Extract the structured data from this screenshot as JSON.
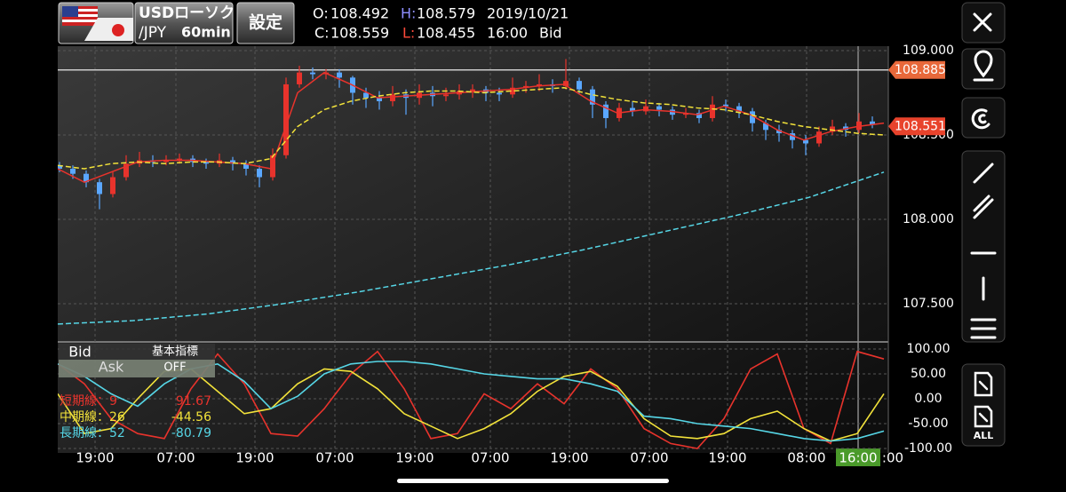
{
  "header": {
    "pair": "USDローソク",
    "pair_quote": "/JPY",
    "interval": "60min",
    "settings": "設定",
    "quote": {
      "open_label": "O:",
      "open": "108.492",
      "high_label": "H:",
      "high": "108.579",
      "date": "2019/10/21",
      "close_label": "C:",
      "close": "108.559",
      "low_label": "L:",
      "low": "108.455",
      "time": "16:00",
      "side": "Bid"
    }
  },
  "price_chart": {
    "ylim": [
      107.274,
      109.026
    ],
    "yticks": [
      {
        "value": 109,
        "label": "109.000"
      },
      {
        "value": 108.5,
        "label": "108.500"
      },
      {
        "value": 108,
        "label": "108.000"
      },
      {
        "value": 107.5,
        "label": "107.500"
      }
    ],
    "high_tag": {
      "value": 108.885,
      "label": "108.885"
    },
    "last_tag": {
      "value": 108.551,
      "label": "108.551"
    },
    "up_color": "#e8332c",
    "down_color": "#5aa7ff",
    "candles": [
      [
        108.32,
        108.34,
        108.28,
        108.3
      ],
      [
        108.3,
        108.32,
        108.24,
        108.27
      ],
      [
        108.27,
        108.29,
        108.19,
        108.22
      ],
      [
        108.22,
        108.24,
        108.06,
        108.15
      ],
      [
        108.15,
        108.28,
        108.13,
        108.25
      ],
      [
        108.25,
        108.38,
        108.23,
        108.33
      ],
      [
        108.33,
        108.4,
        108.31,
        108.35
      ],
      [
        108.35,
        108.38,
        108.31,
        108.34
      ],
      [
        108.34,
        108.38,
        108.32,
        108.35
      ],
      [
        108.35,
        108.39,
        108.33,
        108.36
      ],
      [
        108.36,
        108.38,
        108.31,
        108.34
      ],
      [
        108.34,
        108.36,
        108.3,
        108.33
      ],
      [
        108.33,
        108.39,
        108.31,
        108.35
      ],
      [
        108.35,
        108.37,
        108.29,
        108.33
      ],
      [
        108.33,
        108.35,
        108.26,
        108.3
      ],
      [
        108.3,
        108.32,
        108.19,
        108.25
      ],
      [
        108.25,
        108.42,
        108.23,
        108.38
      ],
      [
        108.38,
        108.84,
        108.36,
        108.8
      ],
      [
        108.8,
        108.91,
        108.78,
        108.87
      ],
      [
        108.87,
        108.9,
        108.83,
        108.86
      ],
      [
        108.86,
        108.89,
        108.83,
        108.87
      ],
      [
        108.87,
        108.89,
        108.78,
        108.84
      ],
      [
        108.84,
        108.85,
        108.68,
        108.75
      ],
      [
        108.75,
        108.78,
        108.66,
        108.72
      ],
      [
        108.72,
        108.76,
        108.65,
        108.7
      ],
      [
        108.7,
        108.79,
        108.67,
        108.74
      ],
      [
        108.74,
        108.77,
        108.62,
        108.72
      ],
      [
        108.72,
        108.8,
        108.68,
        108.75
      ],
      [
        108.75,
        108.79,
        108.67,
        108.73
      ],
      [
        108.73,
        108.78,
        108.7,
        108.74
      ],
      [
        108.74,
        108.8,
        108.71,
        108.76
      ],
      [
        108.76,
        108.8,
        108.72,
        108.77
      ],
      [
        108.77,
        108.79,
        108.7,
        108.75
      ],
      [
        108.75,
        108.78,
        108.7,
        108.74
      ],
      [
        108.74,
        108.84,
        108.72,
        108.78
      ],
      [
        108.78,
        108.82,
        108.75,
        108.79
      ],
      [
        108.79,
        108.86,
        108.76,
        108.8
      ],
      [
        108.8,
        108.83,
        108.75,
        108.79
      ],
      [
        108.79,
        108.95,
        108.77,
        108.82
      ],
      [
        108.82,
        108.84,
        108.74,
        108.77
      ],
      [
        108.77,
        108.79,
        108.6,
        108.68
      ],
      [
        108.68,
        108.7,
        108.54,
        108.6
      ],
      [
        108.6,
        108.69,
        108.58,
        108.66
      ],
      [
        108.66,
        108.7,
        108.61,
        108.64
      ],
      [
        108.64,
        108.71,
        108.62,
        108.67
      ],
      [
        108.67,
        108.69,
        108.61,
        108.65
      ],
      [
        108.65,
        108.67,
        108.59,
        108.62
      ],
      [
        108.62,
        108.66,
        108.6,
        108.63
      ],
      [
        108.63,
        108.65,
        108.57,
        108.6
      ],
      [
        108.6,
        108.73,
        108.58,
        108.68
      ],
      [
        108.68,
        108.71,
        108.64,
        108.67
      ],
      [
        108.67,
        108.69,
        108.6,
        108.64
      ],
      [
        108.64,
        108.66,
        108.52,
        108.57
      ],
      [
        108.57,
        108.59,
        108.47,
        108.53
      ],
      [
        108.53,
        108.56,
        108.46,
        108.51
      ],
      [
        108.51,
        108.53,
        108.42,
        108.47
      ],
      [
        108.47,
        108.5,
        108.38,
        108.45
      ],
      [
        108.45,
        108.55,
        108.43,
        108.52
      ],
      [
        108.52,
        108.59,
        108.5,
        108.55
      ],
      [
        108.55,
        108.57,
        108.49,
        108.53
      ],
      [
        108.53,
        108.63,
        108.51,
        108.58
      ],
      [
        108.58,
        108.61,
        108.54,
        108.56
      ]
    ],
    "moving_averages": [
      {
        "color": "#e8332c",
        "values": [
          108.3,
          108.22,
          108.28,
          108.34,
          108.35,
          108.35,
          108.34,
          108.33,
          108.3,
          108.75,
          108.87,
          108.8,
          108.72,
          108.73,
          108.74,
          108.75,
          108.76,
          108.77,
          108.79,
          108.8,
          108.7,
          108.63,
          108.65,
          108.64,
          108.62,
          108.67,
          108.62,
          108.53,
          108.47,
          108.52,
          108.55,
          108.57
        ]
      },
      {
        "color": "#f2e23a",
        "values": [
          108.32,
          108.3,
          108.33,
          108.34,
          108.33,
          108.34,
          108.34,
          108.33,
          108.36,
          108.55,
          108.65,
          108.7,
          108.73,
          108.75,
          108.76,
          108.76,
          108.75,
          108.76,
          108.77,
          108.78,
          108.74,
          108.71,
          108.69,
          108.68,
          108.66,
          108.65,
          108.62,
          108.58,
          108.55,
          108.53,
          108.51,
          108.5
        ]
      },
      {
        "color": "#56d6e6",
        "values": [
          107.38,
          107.4,
          107.44,
          107.5,
          107.57,
          107.65,
          107.73,
          107.82,
          107.92,
          108.02,
          108.13,
          108.28
        ]
      }
    ]
  },
  "oscillator": {
    "ylim": [
      -108.9,
      110.7
    ],
    "yticks": [
      {
        "value": 100,
        "label": "100.00"
      },
      {
        "value": 50,
        "label": "50.00"
      },
      {
        "value": 0,
        "label": "0.00"
      },
      {
        "value": -50,
        "label": "-50.00"
      },
      {
        "value": -100,
        "label": "-100.00"
      }
    ],
    "toggle": {
      "bid": "Bid",
      "ask": "Ask",
      "indicator": "基本指標",
      "indicator_state": "OFF"
    },
    "series": [
      {
        "name": "短期線：9",
        "value": "91.67",
        "color": "#e8332c",
        "values": [
          70,
          30,
          -40,
          -70,
          -80,
          20,
          90,
          30,
          -70,
          -75,
          -20,
          50,
          95,
          20,
          -80,
          -70,
          10,
          -20,
          30,
          -10,
          60,
          20,
          -60,
          -90,
          -100,
          -40,
          60,
          90,
          -60,
          -90,
          95,
          80
        ]
      },
      {
        "name": "中期線：26",
        "value": "-44.56",
        "color": "#f2e23a",
        "values": [
          10,
          -70,
          -60,
          0,
          55,
          60,
          15,
          -30,
          -20,
          30,
          60,
          55,
          20,
          -30,
          -55,
          -80,
          -60,
          -30,
          15,
          45,
          55,
          25,
          -40,
          -75,
          -80,
          -70,
          -40,
          -25,
          -60,
          -85,
          -70,
          10
        ]
      },
      {
        "name": "長期線：52",
        "value": "-80.79",
        "color": "#56d6e6",
        "values": [
          70,
          45,
          10,
          -15,
          30,
          60,
          70,
          35,
          -20,
          5,
          50,
          70,
          75,
          75,
          70,
          60,
          50,
          45,
          40,
          40,
          30,
          15,
          -35,
          -40,
          -50,
          -55,
          -60,
          -70,
          -80,
          -85,
          -80,
          -65
        ]
      }
    ]
  },
  "x_labels": [
    "19:00",
    "07:00",
    "19:00",
    "07:00",
    "19:00",
    "07:00",
    "19:00",
    "07:00",
    "19:00",
    "08:00",
    "16:00",
    ":00"
  ],
  "toolbar": {
    "all": "ALL"
  }
}
